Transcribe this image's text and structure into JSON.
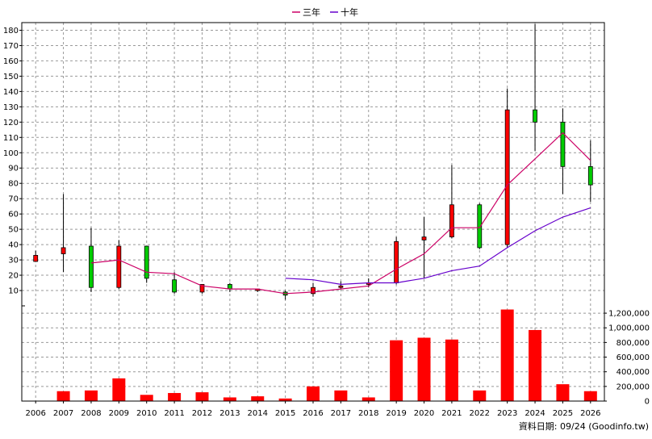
{
  "legend": [
    {
      "label": "三年",
      "color": "#cc0066"
    },
    {
      "label": "十年",
      "color": "#6600cc"
    }
  ],
  "footer": {
    "text": "資料日期: 09/24  (Goodinfo.tw)"
  },
  "colors": {
    "up": "#00cc00",
    "down": "#ff0000",
    "volume": "#ff0000",
    "grid": "#999999"
  },
  "chart_data": [
    {
      "type": "candlestick",
      "categories": [
        "2006",
        "2007",
        "2008",
        "2009",
        "2010",
        "2011",
        "2012",
        "2013",
        "2014",
        "2015",
        "2016",
        "2017",
        "2018",
        "2019",
        "2020",
        "2021",
        "2022",
        "2023",
        "2024",
        "2025",
        "2026"
      ],
      "ylim": [
        0,
        185
      ],
      "yticks": [
        "10",
        "20",
        "30",
        "40",
        "50",
        "60",
        "70",
        "80",
        "90",
        "100",
        "110",
        "120",
        "130",
        "140",
        "150",
        "160",
        "170",
        "180"
      ],
      "grid": true,
      "legend_position": "top-center",
      "candles": [
        {
          "open": 33,
          "close": 29,
          "high": 36,
          "low": 29
        },
        {
          "open": 38,
          "close": 34,
          "high": 73,
          "low": 22
        },
        {
          "open": 12,
          "close": 39,
          "high": 51,
          "low": 9
        },
        {
          "open": 39,
          "close": 12,
          "high": 43,
          "low": 11
        },
        {
          "open": 18,
          "close": 39,
          "high": 39,
          "low": 15
        },
        {
          "open": 9,
          "close": 17,
          "high": 22,
          "low": 8
        },
        {
          "open": 14,
          "close": 9,
          "high": 14,
          "low": 8
        },
        {
          "open": 11,
          "close": 14,
          "high": 15,
          "low": 9
        },
        {
          "open": 11,
          "close": 10,
          "high": 11,
          "low": 9
        },
        {
          "open": 7,
          "close": 9,
          "high": 10,
          "low": 4
        },
        {
          "open": 12,
          "close": 8,
          "high": 15,
          "low": 6
        },
        {
          "open": 13,
          "close": 12,
          "high": 16,
          "low": 11
        },
        {
          "open": 15,
          "close": 14,
          "high": 18,
          "low": 12
        },
        {
          "open": 42,
          "close": 15,
          "high": 45,
          "low": 14
        },
        {
          "open": 45,
          "close": 43,
          "high": 58,
          "low": 18
        },
        {
          "open": 66,
          "close": 45,
          "high": 92,
          "low": 44
        },
        {
          "open": 38,
          "close": 66,
          "high": 67,
          "low": 37
        },
        {
          "open": 128,
          "close": 40,
          "high": 142,
          "low": 38
        },
        {
          "open": 120,
          "close": 128,
          "high": 184,
          "low": 101
        },
        {
          "open": 91,
          "close": 120,
          "high": 129,
          "low": 73
        },
        {
          "open": 79,
          "close": 91,
          "high": 108,
          "low": 68
        }
      ],
      "series": [
        {
          "name": "三年",
          "color": "#cc0066",
          "values": [
            null,
            null,
            28,
            30,
            22,
            21,
            13,
            11,
            11,
            8,
            9,
            11,
            13,
            24,
            34,
            51,
            51,
            79,
            96,
            113,
            95
          ]
        },
        {
          "name": "十年",
          "color": "#6600cc",
          "values": [
            null,
            null,
            null,
            null,
            null,
            null,
            null,
            null,
            null,
            18,
            17,
            14,
            15,
            15,
            18,
            23,
            26,
            38,
            49,
            58,
            64
          ]
        }
      ]
    },
    {
      "type": "bar",
      "categories": [
        "2006",
        "2007",
        "2008",
        "2009",
        "2010",
        "2011",
        "2012",
        "2013",
        "2014",
        "2015",
        "2016",
        "2017",
        "2018",
        "2019",
        "2020",
        "2021",
        "2022",
        "2023",
        "2024",
        "2025",
        "2026"
      ],
      "values": [
        5000,
        135000,
        145000,
        310000,
        85000,
        110000,
        120000,
        50000,
        65000,
        35000,
        200000,
        145000,
        50000,
        830000,
        865000,
        840000,
        145000,
        1250000,
        970000,
        230000,
        135000
      ],
      "ylim": [
        0,
        1300000
      ],
      "yticks": [
        "0",
        "200,000",
        "400,000",
        "600,000",
        "800,000",
        "1,000,000",
        "1,200,000"
      ],
      "grid": true
    }
  ]
}
